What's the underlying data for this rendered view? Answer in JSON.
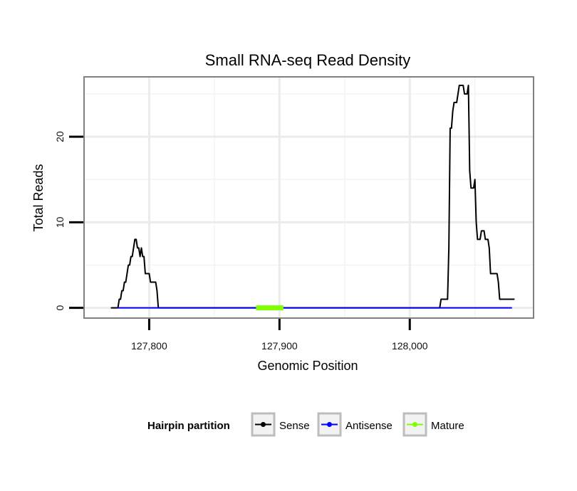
{
  "chart_data": {
    "type": "line",
    "title": "Small RNA-seq Read Density",
    "xlabel": "Genomic Position",
    "ylabel": "Total Reads",
    "xlim": [
      127750,
      128095
    ],
    "ylim": [
      -1.2,
      27
    ],
    "x_ticks": [
      127800,
      127900,
      128000
    ],
    "x_tick_labels": [
      "127,800",
      "127,900",
      "128,000"
    ],
    "y_ticks": [
      0,
      10,
      20
    ],
    "y_tick_labels": [
      "0",
      "10",
      "20"
    ],
    "x_minor_ticks": [
      127850,
      127950,
      128050
    ],
    "y_minor_ticks": [
      5,
      15,
      25
    ],
    "grid": true,
    "legend": {
      "title": "Hairpin partition",
      "position": "bottom",
      "entries": [
        {
          "name": "Sense",
          "color": "#000000"
        },
        {
          "name": "Antisense",
          "color": "#0000ff"
        },
        {
          "name": "Mature",
          "color": "#7fff00"
        }
      ]
    },
    "series": [
      {
        "name": "Sense",
        "color": "#000000",
        "x": [
          127771,
          127776,
          127777,
          127778,
          127779,
          127780,
          127781,
          127782,
          127783,
          127784,
          127785,
          127786,
          127787,
          127788,
          127789,
          127790,
          127791,
          127792,
          127793,
          127794,
          127795,
          127796,
          127797,
          127798,
          127799,
          127800,
          127801,
          127802,
          127803,
          127804,
          127805,
          127806,
          127807,
          127808,
          127809,
          127810,
          127811,
          127812,
          127813,
          127814,
          127815,
          127816,
          127817,
          128023,
          128024,
          128025,
          128026,
          128027,
          128028,
          128029,
          128030,
          128031,
          128032,
          128033,
          128034,
          128035,
          128036,
          128037,
          128038,
          128039,
          128040,
          128041,
          128042,
          128043,
          128044,
          128045,
          128046,
          128047,
          128048,
          128049,
          128050,
          128051,
          128052,
          128053,
          128054,
          128055,
          128056,
          128057,
          128058,
          128059,
          128060,
          128061,
          128062,
          128063,
          128064,
          128065,
          128066,
          128067,
          128068,
          128069,
          128070,
          128071,
          128072,
          128073,
          128074,
          128075,
          128076,
          128077,
          128078,
          128079,
          128080
        ],
        "values": [
          0,
          0,
          1,
          1,
          2,
          2,
          3,
          3,
          4,
          5,
          5,
          6,
          6,
          7,
          8,
          8,
          7,
          7,
          6,
          7,
          6,
          6,
          4,
          4,
          4,
          4,
          3,
          3,
          3,
          3,
          3,
          2,
          0,
          0,
          0,
          0,
          0,
          0,
          0,
          0,
          0,
          0,
          0,
          0,
          1,
          1,
          1,
          1,
          1,
          1,
          7,
          21,
          21,
          23,
          24,
          24,
          24,
          25,
          26,
          26,
          26,
          26,
          25,
          25,
          25,
          26,
          16,
          14,
          14,
          14,
          15,
          10,
          8,
          8,
          8,
          9,
          9,
          9,
          8,
          8,
          8,
          7,
          4,
          4,
          4,
          4,
          4,
          4,
          3,
          1,
          1,
          1,
          1,
          1,
          1,
          1,
          1,
          1,
          1,
          1,
          1
        ]
      },
      {
        "name": "Antisense",
        "color": "#0000ff",
        "x": [
          127776,
          128078
        ],
        "values": [
          0,
          0
        ]
      },
      {
        "name": "Mature",
        "color": "#7fff00",
        "x": [
          127882,
          127903
        ],
        "values": [
          0,
          0
        ]
      }
    ]
  }
}
